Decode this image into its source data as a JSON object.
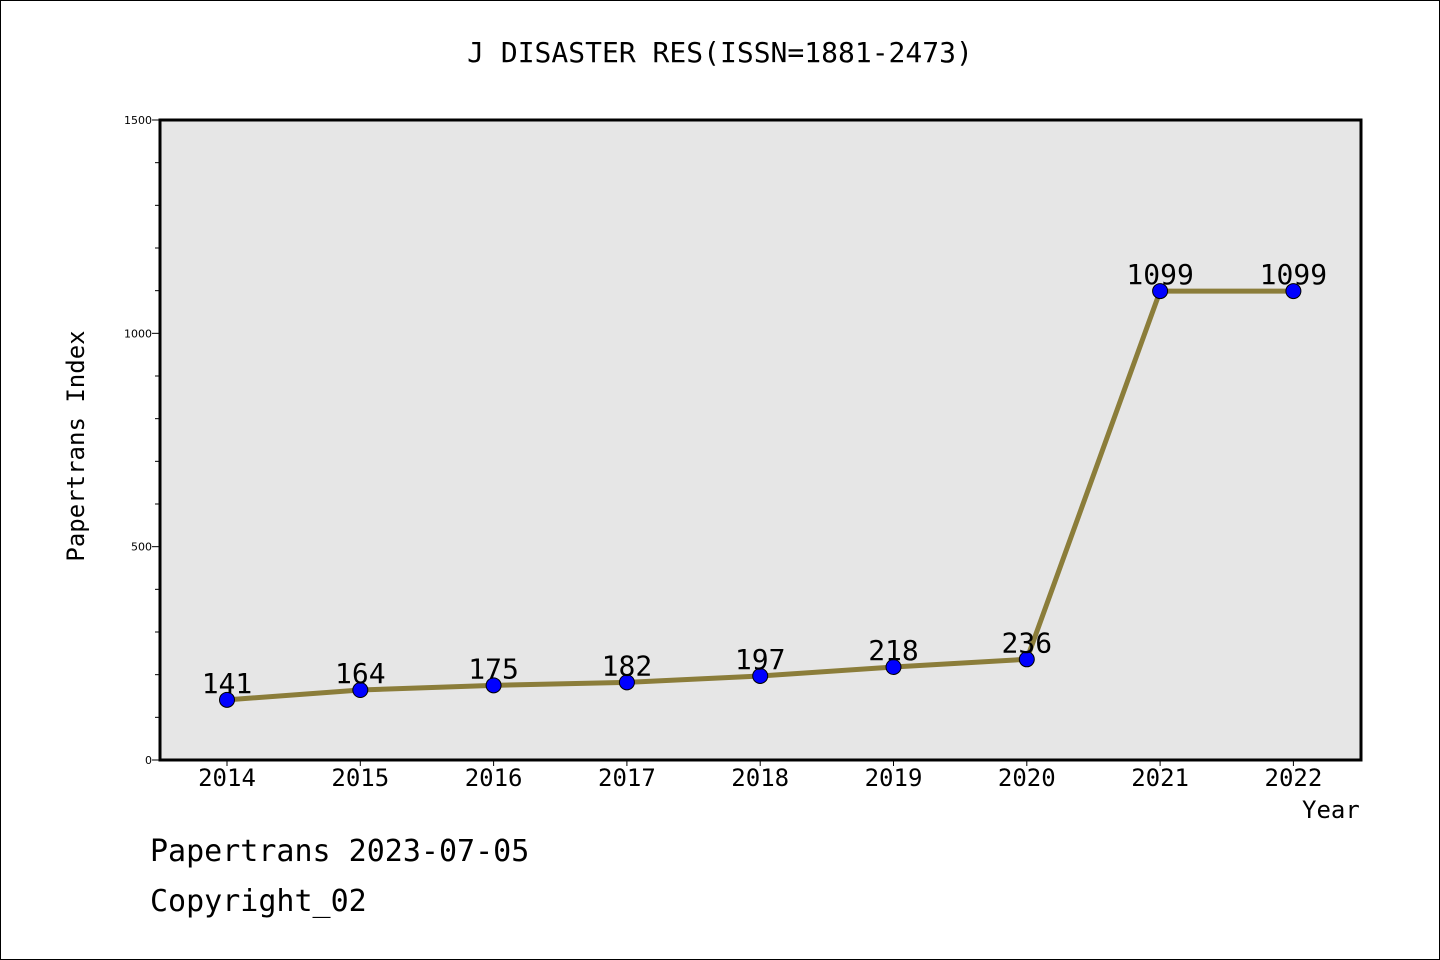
{
  "chart_data": {
    "type": "line",
    "title": "J DISASTER RES(ISSN=1881-2473)",
    "xlabel": "Year",
    "ylabel": "Papertrans Index",
    "categories": [
      "2014",
      "2015",
      "2016",
      "2017",
      "2018",
      "2019",
      "2020",
      "2021",
      "2022"
    ],
    "series": [
      {
        "values": [
          141,
          164,
          175,
          182,
          197,
          218,
          236,
          1099,
          1099
        ],
        "line_color": "#8b7d3a",
        "marker_color": "#0000ff"
      }
    ],
    "data_labels": [
      "141",
      "164",
      "175",
      "182",
      "197",
      "218",
      "236",
      "1099",
      "1099"
    ],
    "ylim": [
      0,
      1500
    ],
    "y_ticks": [
      0,
      500,
      1000,
      1500
    ],
    "y_minor_step": 100,
    "grid": false,
    "legend": "none",
    "plot_background": "#e6e6e6"
  },
  "footer": {
    "line1": "Papertrans 2023-07-05",
    "line2": "Copyright_02"
  }
}
